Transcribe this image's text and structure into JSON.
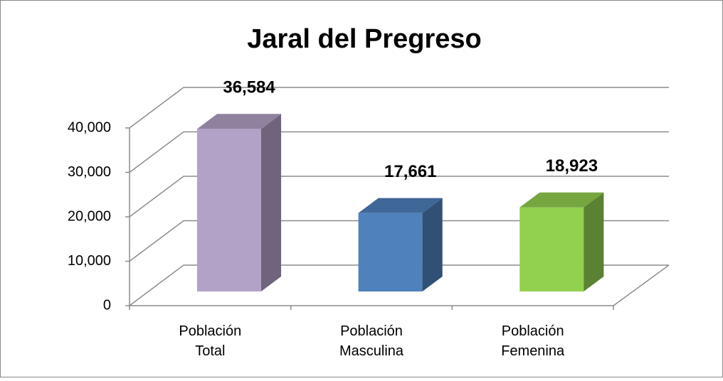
{
  "chart_data": {
    "type": "bar3d",
    "title": "Jaral del Pregreso",
    "categories": [
      "Población Total",
      "Población Masculina",
      "Población Femenina"
    ],
    "values": [
      36584,
      17661,
      18923
    ],
    "value_labels": [
      "36,584",
      "17,661",
      "18,923"
    ],
    "colors": [
      "#b3a2c7",
      "#4f81bd",
      "#92d050"
    ],
    "ylim": [
      0,
      40000
    ],
    "yticks": [
      0,
      {
        "value": 10000,
        "label": "10,000"
      },
      {
        "value": 20000,
        "label": "20,000"
      },
      {
        "value": 30000,
        "label": "30,000"
      },
      {
        "value": 40000,
        "label": "40,000"
      }
    ],
    "grid": true
  }
}
